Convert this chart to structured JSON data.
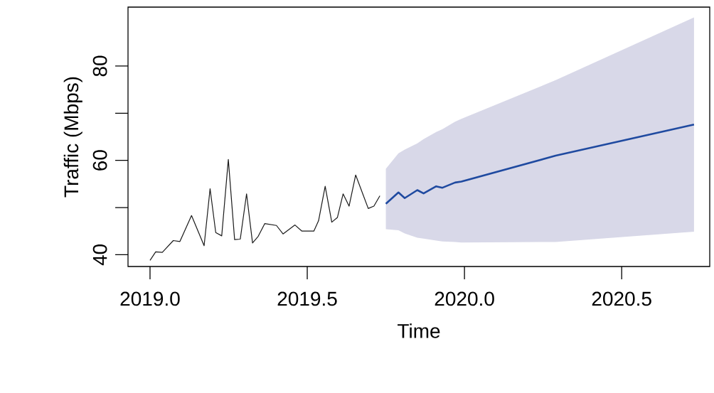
{
  "chart_data": {
    "type": "line",
    "xlabel": "Time",
    "ylabel": "Traffic (Mbps)",
    "xlim": [
      2018.93,
      2020.78
    ],
    "ylim": [
      37.5,
      92.5
    ],
    "xticks": [
      {
        "value": 2019,
        "label": "2019.0"
      },
      {
        "value": 2019.5,
        "label": "2019.5"
      },
      {
        "value": 2020,
        "label": "2020.0"
      },
      {
        "value": 2020.5,
        "label": "2020.5"
      }
    ],
    "yticks": [
      40,
      60,
      80
    ],
    "grid": false,
    "marker": "none",
    "line_style": "solid",
    "series": [
      {
        "color": "#1a1a1a",
        "x": [
          2019.0,
          2019.018,
          2019.039,
          2019.074,
          2019.095,
          2019.132,
          2019.172,
          2019.191,
          2019.209,
          2019.228,
          2019.249,
          2019.269,
          2019.287,
          2019.307,
          2019.326,
          2019.344,
          2019.365,
          2019.402,
          2019.423,
          2019.461,
          2019.483,
          2019.521,
          2019.536,
          2019.557,
          2019.578,
          2019.596,
          2019.614,
          2019.633,
          2019.654,
          2019.694,
          2019.712,
          2019.731
        ],
        "values": [
          38.8,
          40.6,
          40.5,
          43.0,
          42.8,
          48.3,
          41.9,
          54.0,
          44.7,
          44.0,
          60.2,
          43.2,
          43.3,
          52.9,
          42.5,
          43.9,
          46.6,
          46.2,
          44.4,
          46.3,
          45.0,
          45.0,
          47.2,
          54.5,
          46.9,
          47.9,
          52.9,
          50.3,
          56.9,
          49.8,
          50.3,
          52.5
        ]
      },
      {
        "color": "#1f4aa0",
        "x": [
          2019.75,
          2019.79,
          2019.81,
          2019.85,
          2019.87,
          2019.91,
          2019.93,
          2019.97,
          2019.99,
          2020.29,
          2020.73
        ],
        "values": [
          50.8,
          53.2,
          52.0,
          53.7,
          53.0,
          54.5,
          54.2,
          55.3,
          55.5,
          61.0,
          67.6
        ],
        "lower": [
          45.4,
          45.2,
          44.5,
          43.6,
          43.4,
          43.0,
          42.8,
          42.7,
          42.6,
          42.7,
          44.9
        ],
        "upper": [
          58.2,
          61.5,
          62.3,
          63.6,
          64.5,
          66.0,
          66.6,
          68.2,
          68.8,
          77.0,
          90.3
        ]
      }
    ]
  }
}
